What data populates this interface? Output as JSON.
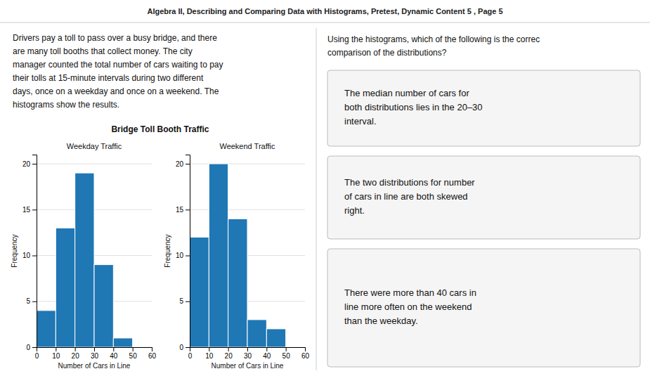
{
  "header": "Algebra II, Describing and Comparing Data with Histograms, Pretest, Dynamic Content 5 , Page 5",
  "text": "Drivers pay a toll to pass over a busy bridge, and there\nare many toll booths that collect money. The city\nmanager counted the total number of cars waiting to pay\ntheir tolls at 15-minute intervals during two different\ndays, once on a weekday and once on a weekend. The\nhistograms show the results.",
  "title": "Bridge Toll Booth Traffic",
  "question": "Using the histograms, which of the following is the correc\ncomparison of the distributions?",
  "answers": [
    "The median number of cars for\nboth distributions lies in the 20–30\ninterval.",
    "The two distributions for number\nof cars in line are both skewed\nright.",
    "There were more than 40 cars in\nline more often on the weekend\nthan the weekday."
  ],
  "chart_data": [
    {
      "type": "histogram",
      "title": "Weekday Traffic",
      "xlabel": "Number of Cars in Line",
      "ylabel": "Frequency",
      "bins": [
        0,
        10,
        20,
        30,
        40,
        50,
        60
      ],
      "values": [
        4,
        13,
        19,
        9,
        1,
        0
      ],
      "xlim": [
        0,
        60
      ],
      "xticks": [
        0,
        10,
        20,
        30,
        40,
        50,
        60
      ],
      "ylim": [
        0,
        21
      ],
      "yticks": [
        0,
        5,
        10,
        15,
        20
      ],
      "grid": true
    },
    {
      "type": "histogram",
      "title": "Weekend Traffic",
      "xlabel": "Number of Cars in Line",
      "ylabel": "Frequency",
      "bins": [
        0,
        10,
        20,
        30,
        40,
        50,
        60
      ],
      "values": [
        12,
        20,
        14,
        3,
        2,
        0
      ],
      "xlim": [
        0,
        60
      ],
      "xticks": [
        0,
        10,
        20,
        30,
        40,
        50,
        60
      ],
      "ylim": [
        0,
        21
      ],
      "yticks": [
        0,
        5,
        10,
        15,
        20
      ],
      "grid": true
    }
  ]
}
